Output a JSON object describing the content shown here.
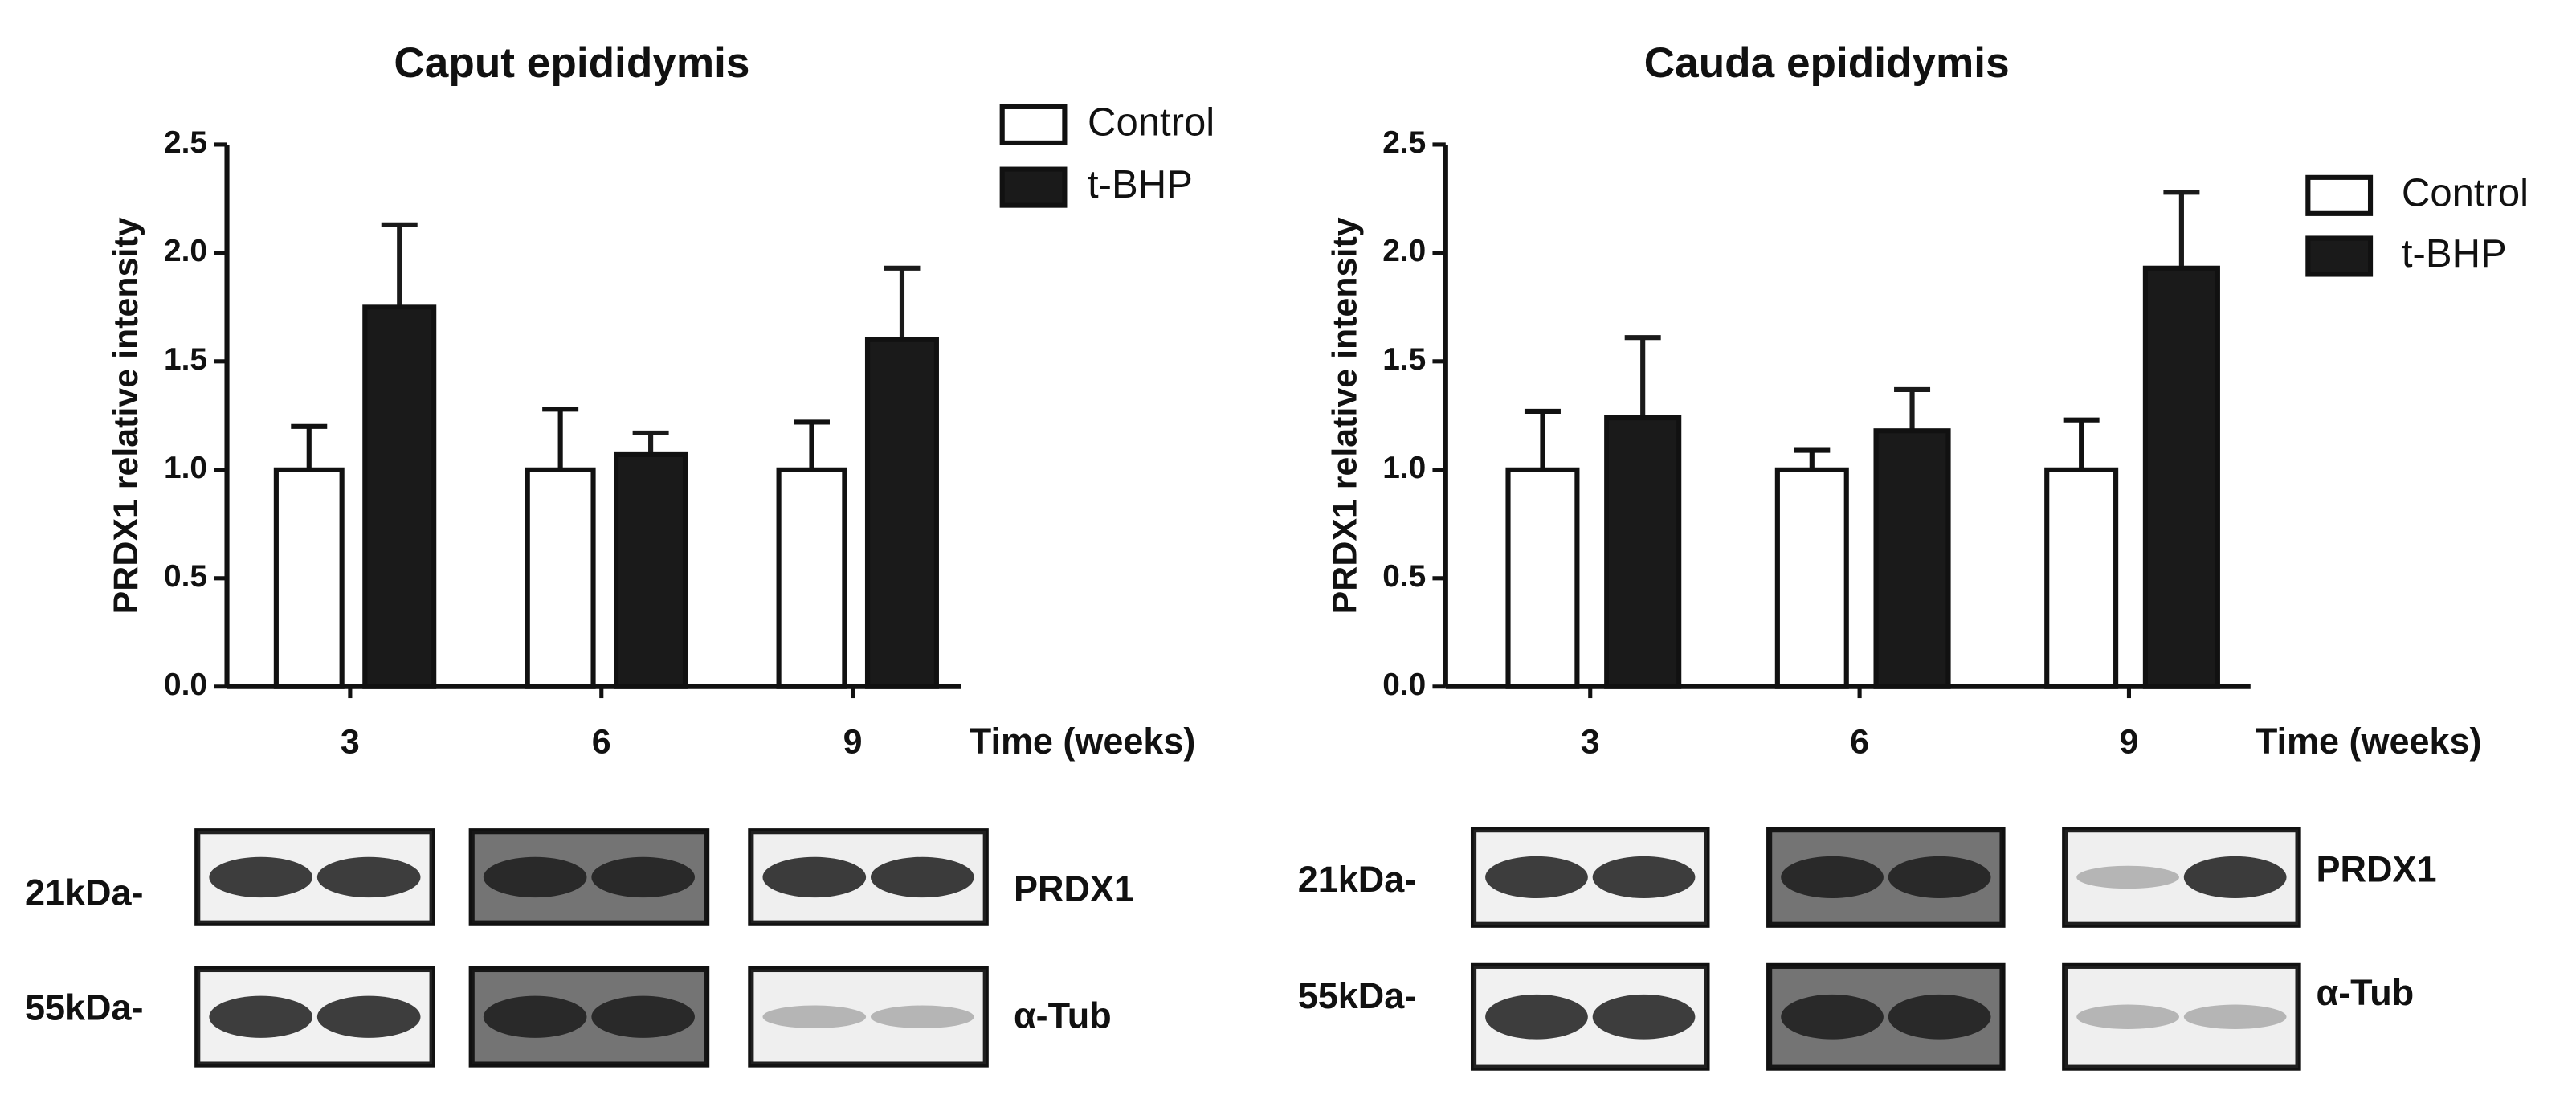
{
  "chart_data": [
    {
      "type": "bar",
      "title": "Caput epididymis",
      "x_label": "Time (weeks)",
      "y_label": "PRDX1 relative intensity",
      "categories": [
        "3",
        "6",
        "9"
      ],
      "series": [
        {
          "name": "Control",
          "color": "#ffffff",
          "values": [
            1.0,
            1.0,
            1.0
          ],
          "errors": [
            0.2,
            0.28,
            0.22
          ]
        },
        {
          "name": "t-BHP",
          "color": "#1a1a1a",
          "values": [
            1.75,
            1.07,
            1.6
          ],
          "errors": [
            0.38,
            0.1,
            0.33
          ]
        }
      ],
      "ylim": [
        0,
        2.5
      ],
      "yticks": [
        {
          "value": 0,
          "label": "0.0"
        },
        0.5,
        {
          "value": 1,
          "label": "1.0"
        },
        1.5,
        {
          "value": 2,
          "label": "2.0"
        },
        2.5
      ],
      "legend": "upper right",
      "blots": [
        {
          "marker": "21kDa-",
          "protein": "PRDX1"
        },
        {
          "marker": "55kDa-",
          "protein": "α-Tub"
        }
      ]
    },
    {
      "type": "bar",
      "title": "Cauda epididymis",
      "x_label": "Time (weeks)",
      "y_label": "PRDX1 relative intensity",
      "categories": [
        "3",
        "6",
        "9"
      ],
      "series": [
        {
          "name": "Control",
          "color": "#ffffff",
          "values": [
            1.0,
            1.0,
            1.0
          ],
          "errors": [
            0.27,
            0.09,
            0.23
          ]
        },
        {
          "name": "t-BHP",
          "color": "#1a1a1a",
          "values": [
            1.24,
            1.18,
            1.93
          ],
          "errors": [
            0.37,
            0.19,
            0.35
          ]
        }
      ],
      "ylim": [
        0,
        2.5
      ],
      "yticks": [
        {
          "value": 0,
          "label": "0.0"
        },
        0.5,
        {
          "value": 1,
          "label": "1.0"
        },
        1.5,
        {
          "value": 2,
          "label": "2.0"
        },
        2.5
      ],
      "legend": "upper right",
      "blots": [
        {
          "marker": "21kDa-",
          "protein": "PRDX1"
        },
        {
          "marker": "55kDa-",
          "protein": "α-Tub"
        }
      ]
    }
  ]
}
